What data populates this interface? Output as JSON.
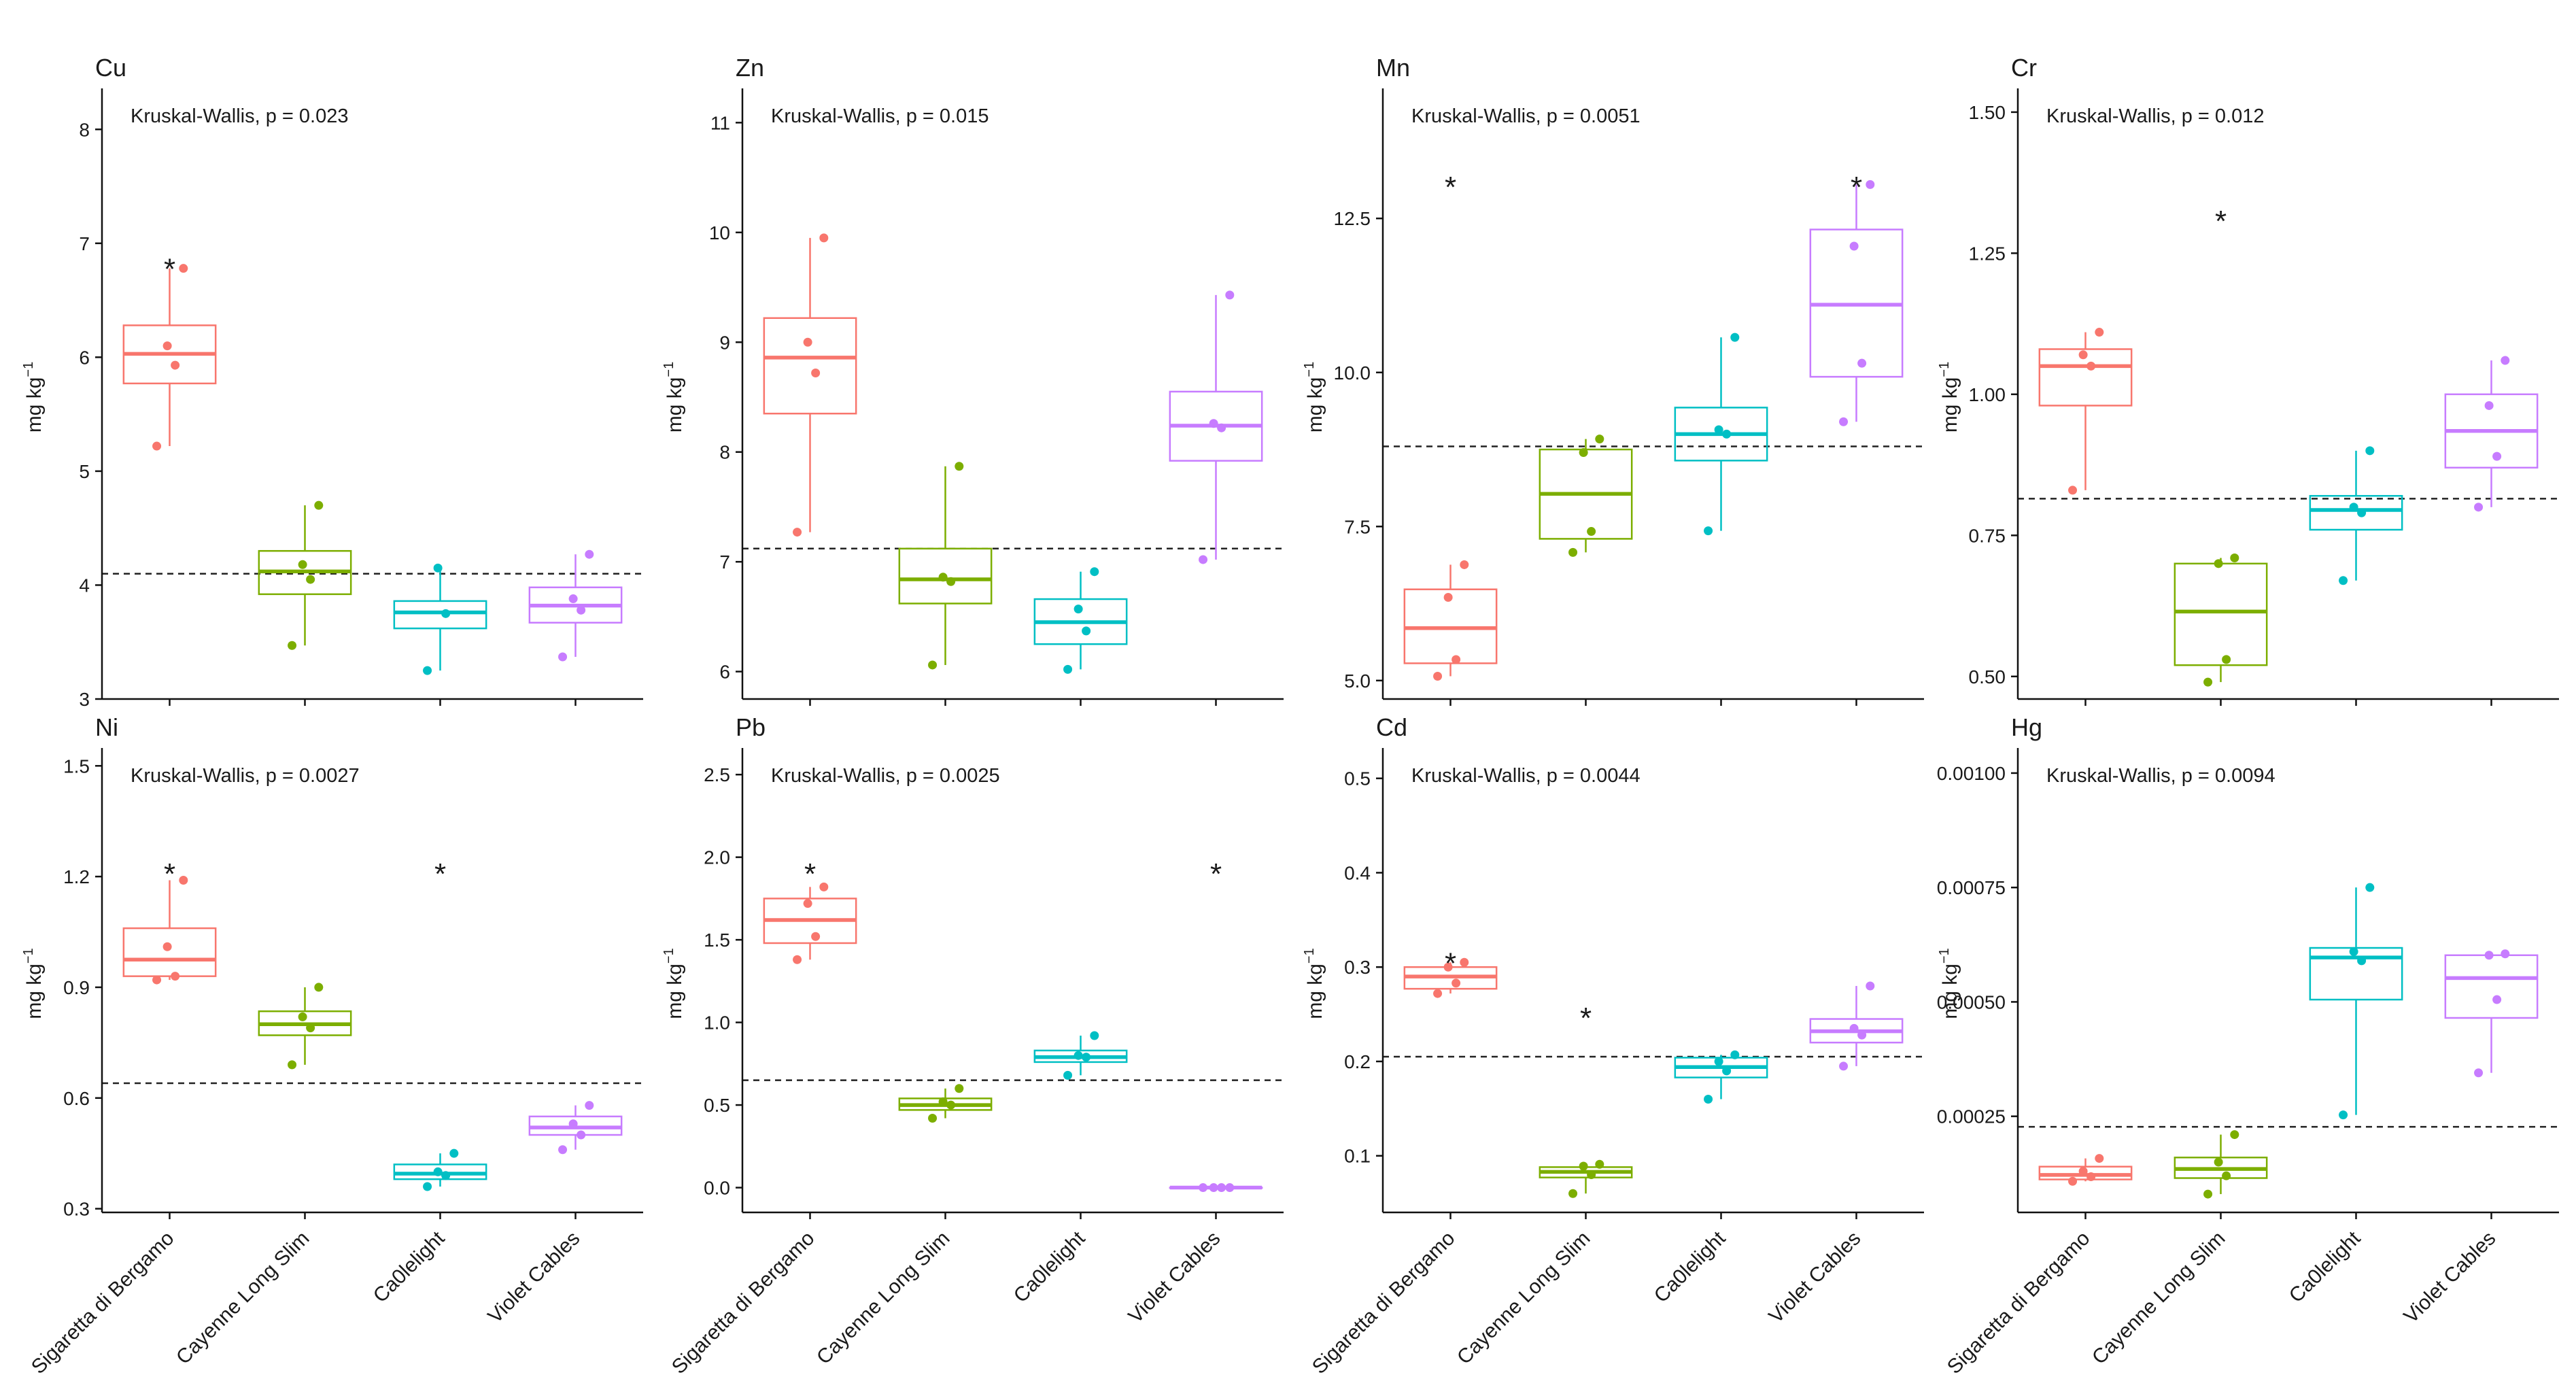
{
  "figure": {
    "groups": [
      "Sigaretta di Bergamo",
      "Cayenne Long Slim",
      "Ca0lelight",
      "Violet Cables"
    ],
    "group_colors": [
      "#F8766D",
      "#7CAE00",
      "#00BFC4",
      "#C77CFF"
    ],
    "significance_marker": "*",
    "ylabel_text": "mg kg",
    "ylabel_exponent": "−1"
  },
  "chart_data": [
    {
      "type": "boxplot",
      "title": "Cu",
      "subtitle": "Kruskal-Wallis, p = 0.023",
      "ylabel": "mg kg−1",
      "ylim": [
        3.0,
        8.3
      ],
      "yticks": [
        3,
        4,
        5,
        6,
        7,
        8
      ],
      "ytick_labels": [
        "3",
        "4",
        "5",
        "6",
        "7",
        "8"
      ],
      "reference_line": 4.1,
      "categories": [
        "Sigaretta di Bergamo",
        "Cayenne Long Slim",
        "Ca0lelight",
        "Violet Cables"
      ],
      "boxes": [
        {
          "q1": 5.77,
          "median": 6.03,
          "q3": 6.28,
          "whisker_low": 5.22,
          "whisker_high": 6.78,
          "points": [
            5.22,
            5.93,
            6.1,
            6.78
          ]
        },
        {
          "q1": 3.92,
          "median": 4.12,
          "q3": 4.3,
          "whisker_low": 3.47,
          "whisker_high": 4.7,
          "points": [
            3.47,
            4.05,
            4.18,
            4.7
          ]
        },
        {
          "q1": 3.62,
          "median": 3.76,
          "q3": 3.86,
          "whisker_low": 3.25,
          "whisker_high": 4.15,
          "points": [
            3.25,
            3.75,
            4.15
          ]
        },
        {
          "q1": 3.67,
          "median": 3.82,
          "q3": 3.98,
          "whisker_low": 3.37,
          "whisker_high": 4.27,
          "points": [
            3.37,
            3.78,
            3.88,
            4.27
          ]
        }
      ],
      "significant": [
        0
      ]
    },
    {
      "type": "boxplot",
      "title": "Zn",
      "subtitle": "Kruskal-Wallis, p = 0.015",
      "ylabel": "mg kg−1",
      "ylim": [
        5.75,
        11.25
      ],
      "yticks": [
        6,
        7,
        8,
        9,
        10,
        11
      ],
      "ytick_labels": [
        "6",
        "7",
        "8",
        "9",
        "10",
        "11"
      ],
      "reference_line": 7.12,
      "categories": [
        "Sigaretta di Bergamo",
        "Cayenne Long Slim",
        "Ca0lelight",
        "Violet Cables"
      ],
      "boxes": [
        {
          "q1": 8.35,
          "median": 8.86,
          "q3": 9.22,
          "whisker_low": 7.27,
          "whisker_high": 9.95,
          "points": [
            7.27,
            8.72,
            9.0,
            9.95
          ]
        },
        {
          "q1": 6.62,
          "median": 6.84,
          "q3": 7.12,
          "whisker_low": 6.06,
          "whisker_high": 7.87,
          "points": [
            6.06,
            6.82,
            6.86,
            7.87
          ]
        },
        {
          "q1": 6.25,
          "median": 6.45,
          "q3": 6.66,
          "whisker_low": 6.02,
          "whisker_high": 6.91,
          "points": [
            6.02,
            6.37,
            6.57,
            6.91
          ]
        },
        {
          "q1": 7.92,
          "median": 8.24,
          "q3": 8.55,
          "whisker_low": 7.02,
          "whisker_high": 9.43,
          "points": [
            7.02,
            8.22,
            8.26,
            9.43
          ]
        }
      ],
      "significant": []
    },
    {
      "type": "boxplot",
      "title": "Mn",
      "subtitle": "Kruskal-Wallis, p = 0.0051",
      "ylabel": "mg kg−1",
      "ylim": [
        4.7,
        14.5
      ],
      "yticks": [
        5.0,
        7.5,
        10.0,
        12.5
      ],
      "ytick_labels": [
        "5.0",
        "7.5",
        "10.0",
        "12.5"
      ],
      "reference_line": 8.8,
      "categories": [
        "Sigaretta di Bergamo",
        "Cayenne Long Slim",
        "Ca0lelight",
        "Violet Cables"
      ],
      "boxes": [
        {
          "q1": 5.28,
          "median": 5.85,
          "q3": 6.48,
          "whisker_low": 5.07,
          "whisker_high": 6.88,
          "points": [
            5.07,
            5.34,
            6.35,
            6.88
          ]
        },
        {
          "q1": 7.3,
          "median": 8.03,
          "q3": 8.75,
          "whisker_low": 7.08,
          "whisker_high": 8.92,
          "points": [
            7.08,
            7.42,
            8.7,
            8.92
          ]
        },
        {
          "q1": 8.57,
          "median": 9.0,
          "q3": 9.43,
          "whisker_low": 7.43,
          "whisker_high": 10.57,
          "points": [
            7.43,
            9.0,
            9.07,
            10.57
          ]
        },
        {
          "q1": 9.93,
          "median": 11.1,
          "q3": 12.32,
          "whisker_low": 9.2,
          "whisker_high": 13.05,
          "points": [
            9.2,
            10.15,
            12.05,
            13.05
          ]
        }
      ],
      "significant": [
        0,
        3
      ]
    },
    {
      "type": "boxplot",
      "title": "Cr",
      "subtitle": "Kruskal-Wallis, p = 0.012",
      "ylabel": "mg kg−1",
      "ylim": [
        0.46,
        1.53
      ],
      "yticks": [
        0.5,
        0.75,
        1.0,
        1.25,
        1.5
      ],
      "ytick_labels": [
        "0.50",
        "0.75",
        "1.00",
        "1.25",
        "1.50"
      ],
      "reference_line": 0.815,
      "categories": [
        "Sigaretta di Bergamo",
        "Cayenne Long Slim",
        "Ca0lelight",
        "Violet Cables"
      ],
      "boxes": [
        {
          "q1": 0.98,
          "median": 1.05,
          "q3": 1.08,
          "whisker_low": 0.83,
          "whisker_high": 1.11,
          "points": [
            0.83,
            1.05,
            1.07,
            1.11
          ]
        },
        {
          "q1": 0.52,
          "median": 0.615,
          "q3": 0.7,
          "whisker_low": 0.49,
          "whisker_high": 0.71,
          "points": [
            0.49,
            0.53,
            0.7,
            0.71
          ]
        },
        {
          "q1": 0.76,
          "median": 0.795,
          "q3": 0.82,
          "whisker_low": 0.67,
          "whisker_high": 0.9,
          "points": [
            0.67,
            0.79,
            0.8,
            0.9
          ]
        },
        {
          "q1": 0.87,
          "median": 0.935,
          "q3": 1.0,
          "whisker_low": 0.8,
          "whisker_high": 1.06,
          "points": [
            0.8,
            0.89,
            0.98,
            1.06
          ]
        }
      ],
      "significant": [
        1
      ]
    },
    {
      "type": "boxplot",
      "title": "Ni",
      "subtitle": "Kruskal-Wallis, p = 0.0027",
      "ylabel": "mg kg−1",
      "ylim": [
        0.29,
        1.53
      ],
      "yticks": [
        0.3,
        0.6,
        0.9,
        1.2,
        1.5
      ],
      "ytick_labels": [
        "0.3",
        "0.6",
        "0.9",
        "1.2",
        "1.5"
      ],
      "reference_line": 0.64,
      "categories": [
        "Sigaretta di Bergamo",
        "Cayenne Long Slim",
        "Ca0lelight",
        "Violet Cables"
      ],
      "boxes": [
        {
          "q1": 0.93,
          "median": 0.975,
          "q3": 1.06,
          "whisker_low": 0.92,
          "whisker_high": 1.19,
          "points": [
            0.92,
            0.93,
            1.01,
            1.19
          ]
        },
        {
          "q1": 0.77,
          "median": 0.8,
          "q3": 0.835,
          "whisker_low": 0.69,
          "whisker_high": 0.9,
          "points": [
            0.69,
            0.79,
            0.82,
            0.9
          ]
        },
        {
          "q1": 0.38,
          "median": 0.395,
          "q3": 0.42,
          "whisker_low": 0.36,
          "whisker_high": 0.45,
          "points": [
            0.36,
            0.39,
            0.4,
            0.45
          ]
        },
        {
          "q1": 0.5,
          "median": 0.52,
          "q3": 0.55,
          "whisker_low": 0.46,
          "whisker_high": 0.58,
          "points": [
            0.46,
            0.5,
            0.53,
            0.58
          ]
        }
      ],
      "significant": [
        0,
        2
      ]
    },
    {
      "type": "boxplot",
      "title": "Pb",
      "subtitle": "Kruskal-Wallis, p = 0.0025",
      "ylabel": "mg kg−1",
      "ylim": [
        -0.15,
        2.62
      ],
      "yticks": [
        0.0,
        0.5,
        1.0,
        1.5,
        2.0,
        2.5
      ],
      "ytick_labels": [
        "0.0",
        "0.5",
        "1.0",
        "1.5",
        "2.0",
        "2.5"
      ],
      "reference_line": 0.65,
      "categories": [
        "Sigaretta di Bergamo",
        "Cayenne Long Slim",
        "Ca0lelight",
        "Violet Cables"
      ],
      "boxes": [
        {
          "q1": 1.48,
          "median": 1.62,
          "q3": 1.75,
          "whisker_low": 1.38,
          "whisker_high": 1.82,
          "points": [
            1.38,
            1.52,
            1.72,
            1.82
          ]
        },
        {
          "q1": 0.47,
          "median": 0.5,
          "q3": 0.54,
          "whisker_low": 0.42,
          "whisker_high": 0.6,
          "points": [
            0.42,
            0.5,
            0.52,
            0.6
          ]
        },
        {
          "q1": 0.76,
          "median": 0.79,
          "q3": 0.83,
          "whisker_low": 0.68,
          "whisker_high": 0.92,
          "points": [
            0.68,
            0.79,
            0.8,
            0.92
          ]
        },
        {
          "q1": 0.0,
          "median": 0.0,
          "q3": 0.0,
          "whisker_low": 0.0,
          "whisker_high": 0.0,
          "points": [
            0.0,
            0.0,
            0.0,
            0.0
          ]
        }
      ],
      "significant": [
        0,
        3
      ]
    },
    {
      "type": "boxplot",
      "title": "Cd",
      "subtitle": "Kruskal-Wallis, p = 0.0044",
      "ylabel": "mg kg−1",
      "ylim": [
        0.04,
        0.525
      ],
      "yticks": [
        0.1,
        0.2,
        0.3,
        0.4,
        0.5
      ],
      "ytick_labels": [
        "0.1",
        "0.2",
        "0.3",
        "0.4",
        "0.5"
      ],
      "reference_line": 0.205,
      "categories": [
        "Sigaretta di Bergamo",
        "Cayenne Long Slim",
        "Ca0lelight",
        "Violet Cables"
      ],
      "boxes": [
        {
          "q1": 0.277,
          "median": 0.29,
          "q3": 0.3,
          "whisker_low": 0.272,
          "whisker_high": 0.305,
          "points": [
            0.272,
            0.283,
            0.3,
            0.305
          ]
        },
        {
          "q1": 0.077,
          "median": 0.083,
          "q3": 0.088,
          "whisker_low": 0.06,
          "whisker_high": 0.091,
          "points": [
            0.06,
            0.08,
            0.089,
            0.091
          ]
        },
        {
          "q1": 0.183,
          "median": 0.194,
          "q3": 0.204,
          "whisker_low": 0.16,
          "whisker_high": 0.207,
          "points": [
            0.16,
            0.19,
            0.2,
            0.207
          ]
        },
        {
          "q1": 0.22,
          "median": 0.232,
          "q3": 0.245,
          "whisker_low": 0.195,
          "whisker_high": 0.28,
          "points": [
            0.195,
            0.228,
            0.235,
            0.28
          ]
        }
      ],
      "significant": [
        0,
        1
      ]
    },
    {
      "type": "boxplot",
      "title": "Hg",
      "subtitle": "Kruskal-Wallis, p = 0.0094",
      "ylabel": "mg kg−1",
      "ylim": [
        4e-05,
        0.00104
      ],
      "yticks": [
        0.00025,
        0.0005,
        0.00075,
        0.001
      ],
      "ytick_labels": [
        "0.00025",
        "0.00050",
        "0.00075",
        "0.00100"
      ],
      "reference_line": 0.000227,
      "categories": [
        "Sigaretta di Bergamo",
        "Cayenne Long Slim",
        "Ca0lelight",
        "Violet Cables"
      ],
      "boxes": [
        {
          "q1": 0.000112,
          "median": 0.000122,
          "q3": 0.00014,
          "whisker_low": 0.000108,
          "whisker_high": 0.000158,
          "points": [
            0.000108,
            0.000118,
            0.00013,
            0.000158
          ]
        },
        {
          "q1": 0.000115,
          "median": 0.000135,
          "q3": 0.00016,
          "whisker_low": 8e-05,
          "whisker_high": 0.00021,
          "points": [
            8e-05,
            0.00012,
            0.00015,
            0.00021
          ]
        },
        {
          "q1": 0.000505,
          "median": 0.000597,
          "q3": 0.000618,
          "whisker_low": 0.000253,
          "whisker_high": 0.00075,
          "points": [
            0.000253,
            0.00059,
            0.00061,
            0.00075
          ]
        },
        {
          "q1": 0.000465,
          "median": 0.000552,
          "q3": 0.000602,
          "whisker_low": 0.000345,
          "whisker_high": 0.000605,
          "points": [
            0.000345,
            0.000505,
            0.000602,
            0.000605
          ]
        }
      ],
      "significant": []
    }
  ]
}
